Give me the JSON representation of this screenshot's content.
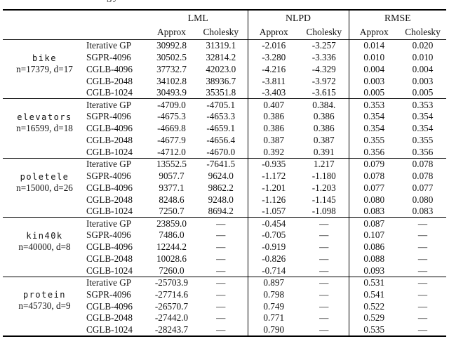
{
  "page": {
    "caption_fragment": "gy"
  },
  "table": {
    "column_groups": [
      {
        "label": "LML",
        "subcolumns": [
          "Approx",
          "Cholesky"
        ]
      },
      {
        "label": "NLPD",
        "subcolumns": [
          "Approx",
          "Cholesky"
        ]
      },
      {
        "label": "RMSE",
        "subcolumns": [
          "Approx",
          "Cholesky"
        ]
      }
    ],
    "blocks": [
      {
        "dataset": "bike",
        "dims": "n=17379, d=17",
        "rows": [
          {
            "method": "Iterative GP",
            "cells": [
              {
                "v": "30992.8"
              },
              {
                "v": "31319.1"
              },
              {
                "v": "-2.016"
              },
              {
                "v": "-3.257"
              },
              {
                "v": "0.014"
              },
              {
                "v": "0.020"
              }
            ]
          },
          {
            "method": "SGPR-4096",
            "cells": [
              {
                "v": "30502.5"
              },
              {
                "v": "32814.2"
              },
              {
                "v": "-3.280"
              },
              {
                "v": "-3.336"
              },
              {
                "v": "0.010"
              },
              {
                "v": "0.010"
              }
            ]
          },
          {
            "method": "CGLB-4096",
            "cells": [
              {
                "v": "37732.7"
              },
              {
                "v": "42023.0",
                "b": true
              },
              {
                "v": "-4.216",
                "b": true
              },
              {
                "v": "-4.329"
              },
              {
                "v": "0.004"
              },
              {
                "v": "0.004"
              }
            ]
          },
          {
            "method": "CGLB-2048",
            "cells": [
              {
                "v": "34102.8"
              },
              {
                "v": "38936.7"
              },
              {
                "v": "-3.811"
              },
              {
                "v": "-3.972"
              },
              {
                "v": "0.003",
                "b": true
              },
              {
                "v": "0.003"
              }
            ]
          },
          {
            "method": "CGLB-1024",
            "cells": [
              {
                "v": "30493.9"
              },
              {
                "v": "35351.8"
              },
              {
                "v": "-3.403"
              },
              {
                "v": "-3.615"
              },
              {
                "v": "0.005"
              },
              {
                "v": "0.005"
              }
            ]
          }
        ]
      },
      {
        "dataset": "elevators",
        "dims": "n=16599, d=18",
        "rows": [
          {
            "method": "Iterative GP",
            "cells": [
              {
                "v": "-4709.0"
              },
              {
                "v": "-4705.1"
              },
              {
                "v": "0.407"
              },
              {
                "v": "0.384."
              },
              {
                "v": "0.353",
                "b": true
              },
              {
                "v": "0.353"
              }
            ]
          },
          {
            "method": "SGPR-4096",
            "cells": [
              {
                "v": "-4675.3"
              },
              {
                "v": "-4653.3",
                "b": true
              },
              {
                "v": "0.386",
                "b": true
              },
              {
                "v": "0.386"
              },
              {
                "v": "0.354"
              },
              {
                "v": "0.354"
              }
            ]
          },
          {
            "method": "CGLB-4096",
            "cells": [
              {
                "v": "-4669.8"
              },
              {
                "v": "-4659.1"
              },
              {
                "v": "0.386",
                "b": true
              },
              {
                "v": "0.386"
              },
              {
                "v": "0.354"
              },
              {
                "v": "0.354"
              }
            ]
          },
          {
            "method": "CGLB-2048",
            "cells": [
              {
                "v": "-4677.9"
              },
              {
                "v": "-4656.4"
              },
              {
                "v": "0.387"
              },
              {
                "v": "0.387"
              },
              {
                "v": "0.355"
              },
              {
                "v": "0.355"
              }
            ]
          },
          {
            "method": "CGLB-1024",
            "cells": [
              {
                "v": "-4712.0"
              },
              {
                "v": "-4670.0"
              },
              {
                "v": "0.392"
              },
              {
                "v": "0.391"
              },
              {
                "v": "0.356"
              },
              {
                "v": "0.356"
              }
            ]
          }
        ]
      },
      {
        "dataset": "poletele",
        "dims": "n=15000, d=26",
        "rows": [
          {
            "method": "Iterative GP",
            "cells": [
              {
                "v": "13552.5"
              },
              {
                "v": "-7641.5"
              },
              {
                "v": "-0.935"
              },
              {
                "v": "1.217"
              },
              {
                "v": "0.079"
              },
              {
                "v": "0.078"
              }
            ]
          },
          {
            "method": "SGPR-4096",
            "cells": [
              {
                "v": "9057.7"
              },
              {
                "v": "9624.0"
              },
              {
                "v": "-1.172"
              },
              {
                "v": "-1.180"
              },
              {
                "v": "0.078"
              },
              {
                "v": "0.078"
              }
            ]
          },
          {
            "method": "CGLB-4096",
            "cells": [
              {
                "v": "9377.1"
              },
              {
                "v": "9862.2",
                "b": true
              },
              {
                "v": "-1.201",
                "b": true
              },
              {
                "v": "-1.203"
              },
              {
                "v": "0.077",
                "b": true
              },
              {
                "v": "0.077"
              }
            ]
          },
          {
            "method": "CGLB-2048",
            "cells": [
              {
                "v": "8248.6"
              },
              {
                "v": "9248.0"
              },
              {
                "v": "-1.126"
              },
              {
                "v": "-1.145"
              },
              {
                "v": "0.080"
              },
              {
                "v": "0.080"
              }
            ]
          },
          {
            "method": "CGLB-1024",
            "cells": [
              {
                "v": "7250.7"
              },
              {
                "v": "8694.2"
              },
              {
                "v": "-1.057"
              },
              {
                "v": "-1.098"
              },
              {
                "v": "0.083"
              },
              {
                "v": "0.083"
              }
            ]
          }
        ]
      },
      {
        "dataset": "kin40k",
        "dims": "n=40000, d=8",
        "rows": [
          {
            "method": "Iterative GP",
            "cells": [
              {
                "v": "23859.0"
              },
              {
                "v": "—"
              },
              {
                "v": "-0.454"
              },
              {
                "v": "—"
              },
              {
                "v": "0.087"
              },
              {
                "v": "—"
              }
            ]
          },
          {
            "method": "SGPR-4096",
            "cells": [
              {
                "v": "7486.0"
              },
              {
                "v": "—"
              },
              {
                "v": "-0.705"
              },
              {
                "v": "—"
              },
              {
                "v": "0.107"
              },
              {
                "v": "—"
              }
            ]
          },
          {
            "method": "CGLB-4096",
            "cells": [
              {
                "v": "12244.2"
              },
              {
                "v": "—"
              },
              {
                "v": "-0.919",
                "b": true
              },
              {
                "v": "—"
              },
              {
                "v": "0.086",
                "b": true
              },
              {
                "v": "—"
              }
            ]
          },
          {
            "method": "CGLB-2048",
            "cells": [
              {
                "v": "10028.6"
              },
              {
                "v": "—"
              },
              {
                "v": "-0.826"
              },
              {
                "v": "—"
              },
              {
                "v": "0.088"
              },
              {
                "v": "—"
              }
            ]
          },
          {
            "method": "CGLB-1024",
            "cells": [
              {
                "v": "7260.0"
              },
              {
                "v": "—"
              },
              {
                "v": "-0.714"
              },
              {
                "v": "—"
              },
              {
                "v": "0.093"
              },
              {
                "v": "—"
              }
            ]
          }
        ]
      },
      {
        "dataset": "protein",
        "dims": "n=45730, d=9",
        "rows": [
          {
            "method": "Iterative GP",
            "cells": [
              {
                "v": "-25703.9"
              },
              {
                "v": "—"
              },
              {
                "v": "0.897"
              },
              {
                "v": "—"
              },
              {
                "v": "0.531"
              },
              {
                "v": "—"
              }
            ]
          },
          {
            "method": "SGPR-4096",
            "cells": [
              {
                "v": "-27714.6"
              },
              {
                "v": "—"
              },
              {
                "v": "0.798"
              },
              {
                "v": "—"
              },
              {
                "v": "0.541"
              },
              {
                "v": "—"
              }
            ]
          },
          {
            "method": "CGLB-4096",
            "cells": [
              {
                "v": "-26570.7"
              },
              {
                "v": "—"
              },
              {
                "v": "0.749",
                "b": true
              },
              {
                "v": "—"
              },
              {
                "v": "0.522",
                "b": true
              },
              {
                "v": "—"
              }
            ]
          },
          {
            "method": "CGLB-2048",
            "cells": [
              {
                "v": "-27442.0"
              },
              {
                "v": "—"
              },
              {
                "v": "0.771"
              },
              {
                "v": "—"
              },
              {
                "v": "0.529"
              },
              {
                "v": "—"
              }
            ]
          },
          {
            "method": "CGLB-1024",
            "cells": [
              {
                "v": "-28243.7"
              },
              {
                "v": "—"
              },
              {
                "v": "0.790"
              },
              {
                "v": "—"
              },
              {
                "v": "0.535"
              },
              {
                "v": "—"
              }
            ]
          }
        ]
      }
    ]
  }
}
